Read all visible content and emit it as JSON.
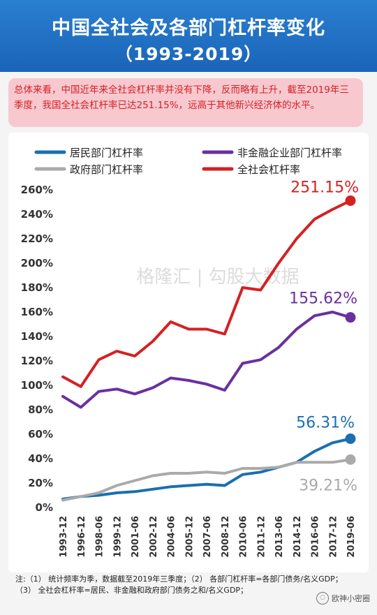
{
  "title": "中国全社会及各部门杠杆率变化",
  "subtitle": "（1993-2019）",
  "summary": "总体来看，中国近年来全社会杠杆率并没有下降，反而略有上升，截至2019年三季度，我国全社会杠杆率已达251.15%，远高于其他新兴经济体的水平。",
  "watermark": "格隆汇 | 勾股大数据",
  "notes": [
    "注:（1） 统计频率为季，数据截至2019年三季度；（2） 各部门杠杆率=各部门债务/名义GDP；",
    "（3） 全社会杠杆率=居民、非金融和政府部门债务之和/名义GDP；"
  ],
  "brand": "欧神小密圈",
  "chart_data": {
    "type": "line",
    "x": [
      "1993-12",
      "1996-12",
      "1998-06",
      "1999-12",
      "2001-06",
      "2002-12",
      "2004-06",
      "2005-12",
      "2007-06",
      "2008-12",
      "2010-06",
      "2011-12",
      "2013-06",
      "2014-12",
      "2016-06",
      "2017-12",
      "2019-06"
    ],
    "ylim": [
      0,
      260
    ],
    "yticks": [
      0,
      20,
      40,
      60,
      80,
      100,
      120,
      140,
      160,
      180,
      200,
      220,
      240,
      260
    ],
    "ytick_labels": [
      "0%",
      "20%",
      "40%",
      "60%",
      "80%",
      "100%",
      "120%",
      "140%",
      "160%",
      "180%",
      "200%",
      "220%",
      "240%",
      "260%"
    ],
    "legend": "top",
    "series": [
      {
        "name": "居民部门杠杆率",
        "color": "#1a6fb0",
        "values": [
          7,
          9,
          10,
          12,
          13,
          15,
          17,
          18,
          19,
          18,
          27,
          29,
          33,
          37,
          46,
          53,
          56.31
        ],
        "end_label": "56.31%"
      },
      {
        "name": "非金融企业部门杠杆率",
        "color": "#6b2fa0",
        "values": [
          91,
          82,
          95,
          97,
          93,
          98,
          106,
          104,
          101,
          96,
          118,
          121,
          131,
          146,
          157,
          160,
          155.62
        ],
        "end_label": "155.62%"
      },
      {
        "name": "政府部门杠杆率",
        "color": "#aaaaaa",
        "values": [
          6,
          9,
          12,
          18,
          22,
          26,
          28,
          28,
          29,
          28,
          32,
          32,
          33,
          37,
          37,
          37,
          39.21
        ],
        "end_label": "39.21%"
      },
      {
        "name": "全社会杠杆率",
        "color": "#d62022",
        "values": [
          107,
          99,
          121,
          128,
          124,
          136,
          152,
          146,
          146,
          142,
          180,
          178,
          200,
          220,
          236,
          244,
          251.15
        ],
        "end_label": "251.15%"
      }
    ]
  }
}
